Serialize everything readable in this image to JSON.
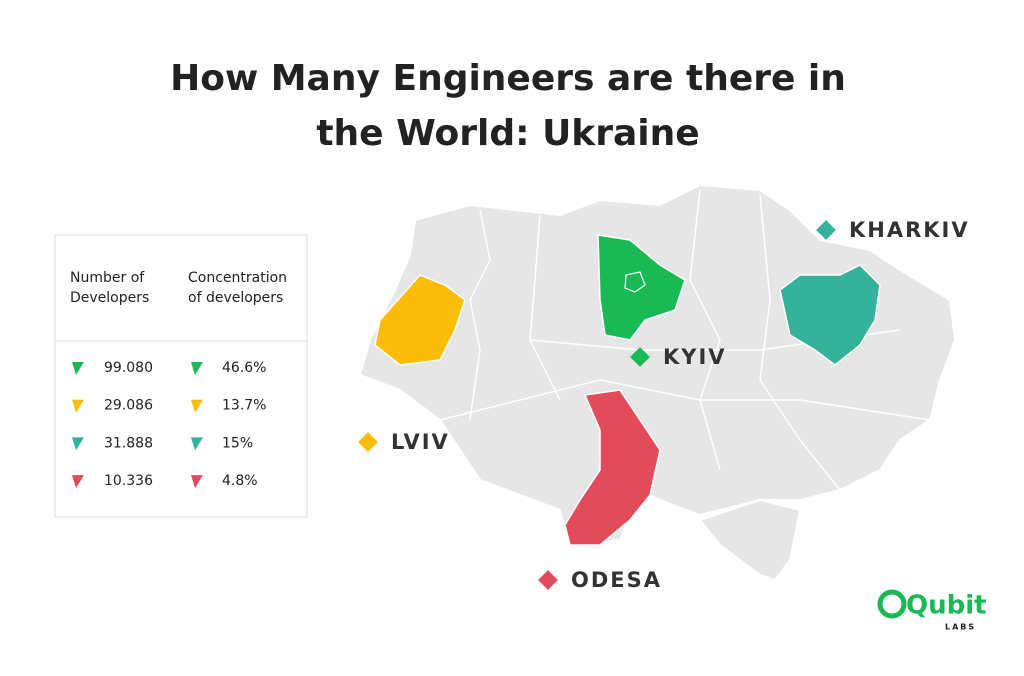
{
  "header": {
    "title": [
      "How Many Engineers are there in",
      "the World: Ukraine"
    ]
  },
  "table": {
    "headers": [
      [
        "Number of",
        "Developers"
      ],
      [
        "Concentration",
        "of developers"
      ]
    ],
    "rows": [
      [
        "99.080",
        "46.6%"
      ],
      [
        "29.086",
        "13.7%"
      ],
      [
        "31.888",
        "15%"
      ],
      [
        "10.336",
        "4.8%"
      ]
    ]
  },
  "map": {
    "cities": [
      "KHARKIV",
      "KYIV",
      "LVIV",
      "ODESA"
    ]
  },
  "logo": {
    "name": "Qubit",
    "sub": "LABS"
  }
}
